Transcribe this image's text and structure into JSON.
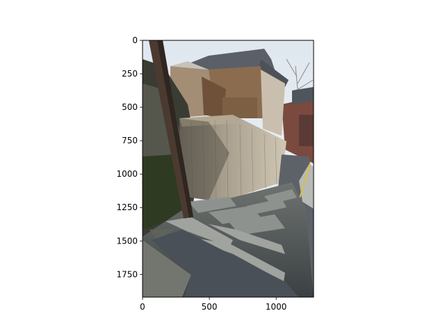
{
  "figure": {
    "type": "image-display",
    "image_description_semantic": "photo-of-stone-stairs-beside-wooden-japanese-houses",
    "x_axis": {
      "ticks": [
        0,
        500,
        1000
      ],
      "tick_labels": [
        "0",
        "500",
        "1000"
      ],
      "range": [
        0,
        1280
      ]
    },
    "y_axis": {
      "ticks": [
        0,
        250,
        500,
        750,
        1000,
        1250,
        1500,
        1750
      ],
      "tick_labels": [
        "0",
        "250",
        "500",
        "750",
        "1000",
        "1250",
        "1500",
        "1750"
      ],
      "range": [
        1920,
        0
      ],
      "inverted": true
    },
    "colors": {
      "sky": "#e8eef4",
      "wood_light": "#b9a88c",
      "wood_dark": "#6d5a44",
      "roof": "#5b6068",
      "stone": "#8a8d8c",
      "stone_shadow": "#3f4547",
      "moss": "#2f3a22",
      "pole": "#4a3a30",
      "asphalt": "#5d6268"
    }
  }
}
